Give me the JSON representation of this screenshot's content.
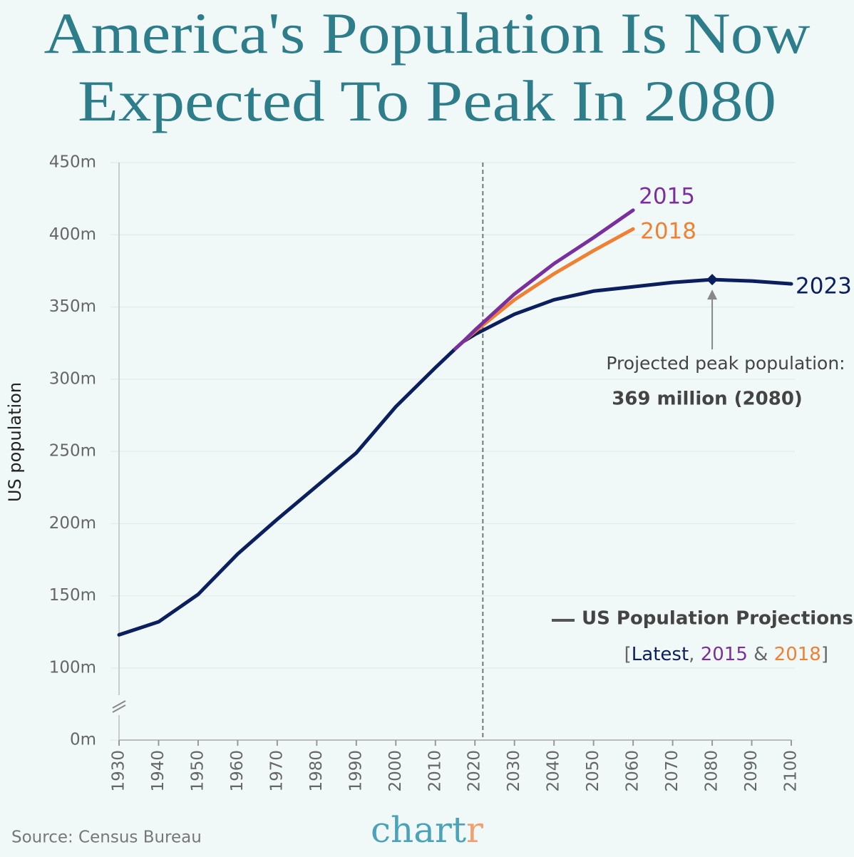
{
  "chart_data": {
    "type": "line",
    "title_lines": [
      "America's Population Is Now",
      "Expected To Peak In 2080"
    ],
    "y_label": "US population",
    "x": [
      1930,
      1940,
      1950,
      1960,
      1970,
      1980,
      1990,
      2000,
      2010,
      2015,
      2017,
      2020,
      2030,
      2040,
      2050,
      2060,
      2070,
      2080,
      2090,
      2100
    ],
    "series": [
      {
        "name": "2023",
        "color": "#0b1f5e",
        "values": [
          123,
          132,
          151,
          179,
          203,
          226,
          249,
          281,
          308,
          321,
          326,
          331,
          345,
          355,
          361,
          364,
          367,
          369,
          368,
          366
        ]
      },
      {
        "name": "2018",
        "color": "#ee8134",
        "values": [
          null,
          null,
          null,
          null,
          null,
          null,
          null,
          null,
          null,
          null,
          326,
          333,
          355,
          373,
          389,
          404,
          null,
          null,
          null,
          null
        ]
      },
      {
        "name": "2015",
        "color": "#7a2f9e",
        "values": [
          null,
          null,
          null,
          null,
          null,
          null,
          null,
          null,
          null,
          321,
          326,
          334,
          359,
          380,
          398,
          417,
          null,
          null,
          null,
          null
        ]
      }
    ],
    "xlim": [
      1930,
      2100
    ],
    "xticks": [
      1930,
      1940,
      1950,
      1960,
      1970,
      1980,
      1990,
      2000,
      2010,
      2020,
      2030,
      2040,
      2050,
      2060,
      2070,
      2080,
      2090,
      2100
    ],
    "ylim": [
      0,
      450
    ],
    "y_break": [
      0,
      100
    ],
    "yticks": [
      {
        "value": 0,
        "label": "0m"
      },
      {
        "value": 100,
        "label": "100m"
      },
      {
        "value": 150,
        "label": "150m"
      },
      {
        "value": 200,
        "label": "200m"
      },
      {
        "value": 250,
        "label": "250m"
      },
      {
        "value": 300,
        "label": "300m"
      },
      {
        "value": 350,
        "label": "350m"
      },
      {
        "value": 400,
        "label": "400m"
      },
      {
        "value": 450,
        "label": "450m"
      }
    ],
    "grid": true,
    "vline": 2022,
    "peak": {
      "x": 2080,
      "value": 369,
      "color": "#0b1f5e"
    },
    "annotation": [
      "Projected peak population:",
      "369 million (2080)"
    ],
    "legend_title": "US Population Projections",
    "legend_note": [
      {
        "text": "[",
        "color": "#666666"
      },
      {
        "text": "Latest",
        "color": "#0b1f5e"
      },
      {
        "text": ", ",
        "color": "#666666"
      },
      {
        "text": "2015",
        "color": "#7a2f9e"
      },
      {
        "text": " & ",
        "color": "#666666"
      },
      {
        "text": "2018",
        "color": "#ee8134"
      },
      {
        "text": "]",
        "color": "#666666"
      }
    ],
    "source": "Source: Census Bureau",
    "logo": [
      {
        "text": "chart",
        "color": "#4aa3b8"
      },
      {
        "text": "r",
        "color": "#f0a070"
      }
    ]
  }
}
